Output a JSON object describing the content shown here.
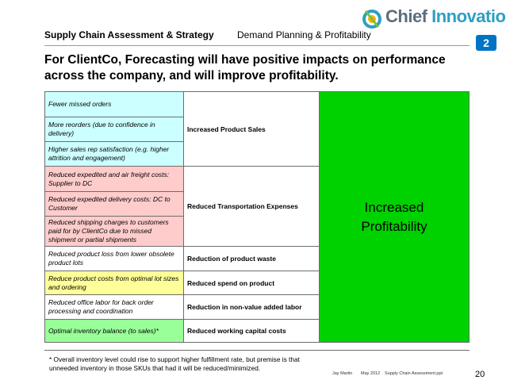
{
  "header": {
    "left": "Supply Chain Assessment & Strategy",
    "center": "Demand Planning & Profitability",
    "logo_word1": "Chief",
    "logo_word2": "Innovation",
    "badge": "2"
  },
  "headline": "For ClientCo, Forecasting will have positive impacts on performance across the company, and will improve profitability.",
  "table": {
    "outcome_line1": "Increased",
    "outcome_line2": "Profitability",
    "groups": [
      {
        "impact": "Increased Product Sales",
        "drivers": [
          "Fewer missed orders",
          "More reorders (due to confidence in delivery)",
          "Higher sales rep satisfaction (e.g. higher attrition and engagement)"
        ]
      },
      {
        "impact": "Reduced Transportation Expenses",
        "drivers": [
          "Reduced expedited and air freight costs: Supplier to DC",
          "Reduced expedited delivery costs: DC to Customer",
          "Reduced shipping charges to customers paid for by ClientCo due to missed shipment or partial shipments"
        ]
      },
      {
        "impact": "Reduction of product waste",
        "drivers": [
          "Reduced product loss from lower obsolete product lots"
        ]
      },
      {
        "impact": "Reduced spend on product",
        "drivers": [
          "Reduce product costs from optimal lot sizes and ordering"
        ]
      },
      {
        "impact": "Reduction in non-value added labor",
        "drivers": [
          "Reduced office labor for back order processing and coordination"
        ]
      },
      {
        "impact": "Reduced working capital costs",
        "drivers": [
          "Optimal inventory balance (to sales)*"
        ]
      }
    ]
  },
  "footnote": "* Overall inventory level could rise to support higher fulfillment rate, but premise is that unneeded inventory in those SKUs that had it will be reduced/minimized.",
  "footer": {
    "author": "Jay Martin",
    "date": "May 2012",
    "file": "Supply Chain Assessment.ppt",
    "page": "20"
  },
  "colors": {
    "cyan": "#ccffff",
    "pink": "#ffcccc",
    "yellow": "#ffff99",
    "light_green": "#99ff99",
    "outcome_green": "#00d200",
    "badge_blue": "#0073c6"
  }
}
